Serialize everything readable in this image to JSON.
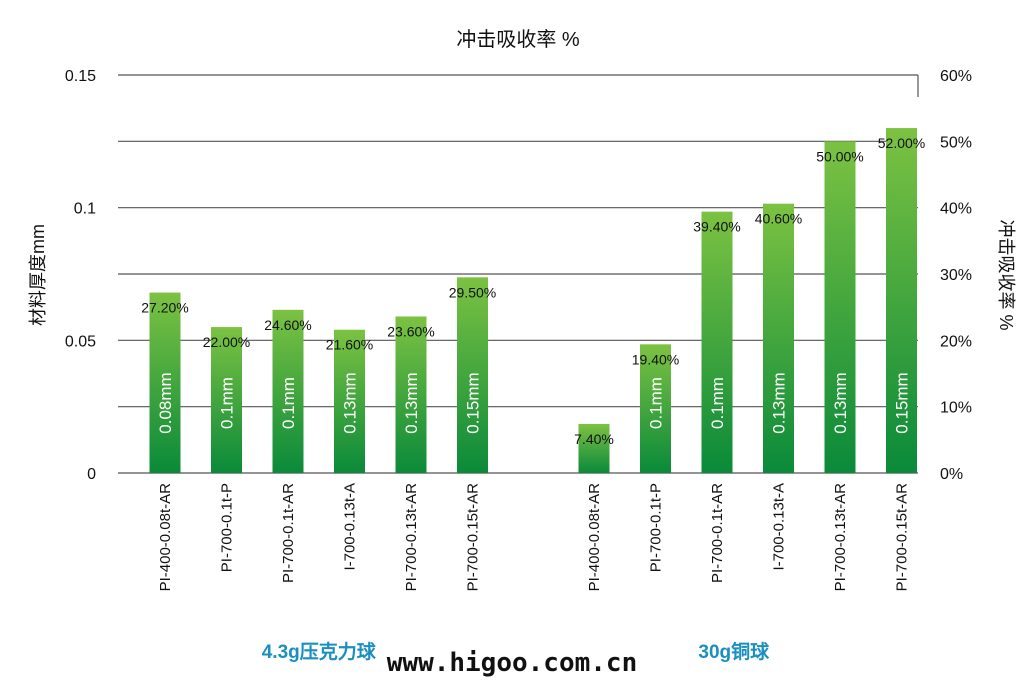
{
  "chart_data": {
    "type": "bar",
    "title": "冲击吸收率 %",
    "ylabel": "材料厚度mm",
    "y2label": "冲击吸收率 %",
    "ylim": [
      0,
      0.15
    ],
    "y2lim": [
      0,
      60
    ],
    "yticks": [
      "0",
      "0.05",
      "0.1",
      "0.15"
    ],
    "y2ticks": [
      "0%",
      "10%",
      "20%",
      "30%",
      "40%",
      "50%",
      "60%"
    ],
    "grid": true,
    "bar_color_top": "#7cc242",
    "bar_color_bottom": "#0a8a3a",
    "groups": [
      {
        "name": "4.3g压克力球",
        "color": "#1a8fc0",
        "bars": [
          {
            "category": "PI-400-0.08t-AR",
            "absorption": 27.2,
            "label": "27.20%",
            "thickness_label": "0.08mm"
          },
          {
            "category": "PI-700-0.1t-P",
            "absorption": 22.0,
            "label": "22.00%",
            "thickness_label": "0.1mm"
          },
          {
            "category": "PI-700-0.1t-AR",
            "absorption": 24.6,
            "label": "24.60%",
            "thickness_label": "0.1mm"
          },
          {
            "category": "I-700-0.13t-A",
            "absorption": 21.6,
            "label": "21.60%",
            "thickness_label": "0.13mm"
          },
          {
            "category": "PI-700-0.13t-AR",
            "absorption": 23.6,
            "label": "23.60%",
            "thickness_label": "0.13mm"
          },
          {
            "category": "PI-700-0.15t-AR",
            "absorption": 29.5,
            "label": "29.50%",
            "thickness_label": "0.15mm"
          }
        ]
      },
      {
        "name": "30g铜球",
        "color": "#1a8fc0",
        "bars": [
          {
            "category": "PI-400-0.08t-AR",
            "absorption": 7.4,
            "label": "7.40%",
            "thickness_label": ""
          },
          {
            "category": "PI-700-0.1t-P",
            "absorption": 19.4,
            "label": "19.40%",
            "thickness_label": "0.1mm"
          },
          {
            "category": "PI-700-0.1t-AR",
            "absorption": 39.4,
            "label": "39.40%",
            "thickness_label": "0.1mm"
          },
          {
            "category": "I-700-0.13t-A",
            "absorption": 40.6,
            "label": "40.60%",
            "thickness_label": "0.13mm"
          },
          {
            "category": "PI-700-0.13t-AR",
            "absorption": 50.0,
            "label": "50.00%",
            "thickness_label": "0.13mm"
          },
          {
            "category": "PI-700-0.15t-AR",
            "absorption": 52.0,
            "label": "52.00%",
            "thickness_label": "0.15mm"
          }
        ]
      }
    ]
  },
  "watermark": "www.higoo.com.cn"
}
